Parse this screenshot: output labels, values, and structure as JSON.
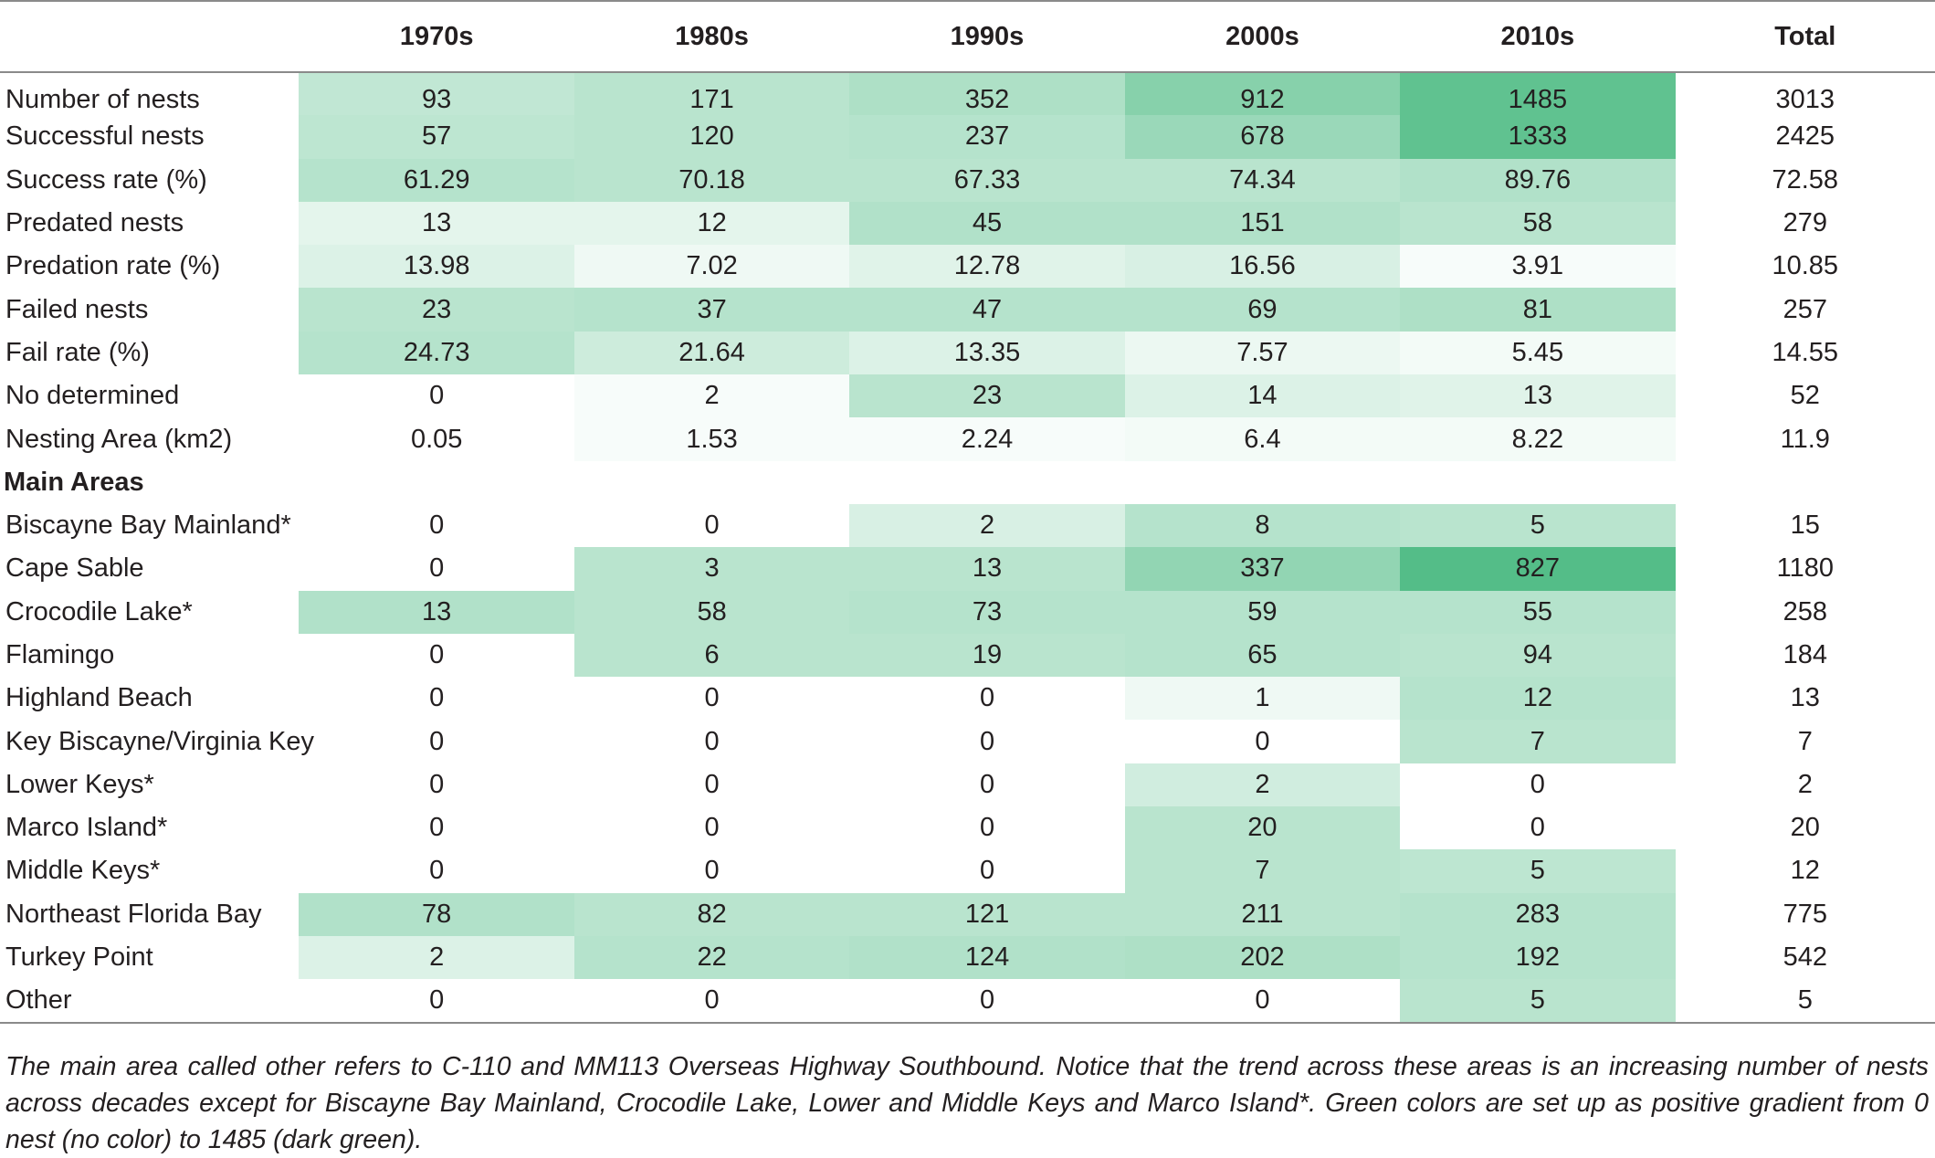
{
  "table": {
    "headers": [
      "",
      "1970s",
      "1980s",
      "1990s",
      "2000s",
      "2010s",
      "Total"
    ],
    "rows": [
      {
        "label": "Number of nests",
        "values": [
          "93",
          "171",
          "352",
          "912",
          "1485"
        ],
        "total": "3013",
        "shades": [
          0.32,
          0.36,
          0.42,
          0.62,
          0.82
        ]
      },
      {
        "label": "Successful nests",
        "values": [
          "57",
          "120",
          "237",
          "678",
          "1333"
        ],
        "total": "2425",
        "shades": [
          0.34,
          0.36,
          0.38,
          0.52,
          0.82
        ]
      },
      {
        "label": "Success rate (%)",
        "values": [
          "61.29",
          "70.18",
          "67.33",
          "74.34",
          "89.76"
        ],
        "total": "72.58",
        "shades": [
          0.38,
          0.36,
          0.36,
          0.36,
          0.4
        ]
      },
      {
        "label": "Predated nests",
        "values": [
          "13",
          "12",
          "45",
          "151",
          "58"
        ],
        "total": "279",
        "shades": [
          0.14,
          0.14,
          0.4,
          0.4,
          0.36
        ]
      },
      {
        "label": "Predation rate (%)",
        "values": [
          "13.98",
          "7.02",
          "12.78",
          "16.56",
          "3.91"
        ],
        "total": "10.85",
        "shades": [
          0.18,
          0.08,
          0.16,
          0.2,
          0.04
        ]
      },
      {
        "label": "Failed nests",
        "values": [
          "23",
          "37",
          "47",
          "69",
          "81"
        ],
        "total": "257",
        "shades": [
          0.36,
          0.38,
          0.38,
          0.38,
          0.42
        ]
      },
      {
        "label": "Fail rate (%)",
        "values": [
          "24.73",
          "21.64",
          "13.35",
          "7.57",
          "5.45"
        ],
        "total": "14.55",
        "shades": [
          0.38,
          0.26,
          0.18,
          0.1,
          0.06
        ]
      },
      {
        "label": "No determined",
        "values": [
          "0",
          "2",
          "23",
          "14",
          "13"
        ],
        "total": "52",
        "shades": [
          0,
          0.04,
          0.36,
          0.18,
          0.16
        ]
      },
      {
        "label": "Nesting Area (km2)",
        "values": [
          "0.05",
          "1.53",
          "2.24",
          "6.4",
          "8.22"
        ],
        "total": "11.9",
        "shades": [
          0,
          0.04,
          0.04,
          0.06,
          0.06
        ]
      },
      {
        "label": "Main Areas",
        "section": true
      },
      {
        "label": "Biscayne Bay Mainland*",
        "values": [
          "0",
          "0",
          "2",
          "8",
          "5"
        ],
        "total": "15",
        "shades": [
          0,
          0,
          0.2,
          0.38,
          0.36
        ]
      },
      {
        "label": "Cape Sable",
        "values": [
          "0",
          "3",
          "13",
          "337",
          "827"
        ],
        "total": "1180",
        "shades": [
          0,
          0.36,
          0.36,
          0.56,
          0.88
        ]
      },
      {
        "label": "Crocodile Lake*",
        "values": [
          "13",
          "58",
          "73",
          "59",
          "55"
        ],
        "total": "258",
        "shades": [
          0.4,
          0.36,
          0.38,
          0.38,
          0.38
        ]
      },
      {
        "label": "Flamingo",
        "values": [
          "0",
          "6",
          "19",
          "65",
          "94"
        ],
        "total": "184",
        "shades": [
          0,
          0.36,
          0.36,
          0.38,
          0.36
        ]
      },
      {
        "label": "Highland Beach",
        "values": [
          "0",
          "0",
          "0",
          "1",
          "12"
        ],
        "total": "13",
        "shades": [
          0,
          0,
          0,
          0.08,
          0.38
        ]
      },
      {
        "label": "Key Biscayne/Virginia Key",
        "values": [
          "0",
          "0",
          "0",
          "0",
          "7"
        ],
        "total": "7",
        "shades": [
          0,
          0,
          0,
          0,
          0.36
        ]
      },
      {
        "label": "Lower Keys*",
        "values": [
          "0",
          "0",
          "0",
          "2",
          "0"
        ],
        "total": "2",
        "shades": [
          0,
          0,
          0,
          0.24,
          0
        ]
      },
      {
        "label": "Marco Island*",
        "values": [
          "0",
          "0",
          "0",
          "20",
          "0"
        ],
        "total": "20",
        "shades": [
          0,
          0,
          0,
          0.36,
          0
        ]
      },
      {
        "label": "Middle Keys*",
        "values": [
          "0",
          "0",
          "0",
          "7",
          "5"
        ],
        "total": "12",
        "shades": [
          0,
          0,
          0,
          0.36,
          0.34
        ]
      },
      {
        "label": "Northeast Florida Bay",
        "values": [
          "78",
          "82",
          "121",
          "211",
          "283"
        ],
        "total": "775",
        "shades": [
          0.4,
          0.36,
          0.36,
          0.36,
          0.38
        ]
      },
      {
        "label": "Turkey Point",
        "values": [
          "2",
          "22",
          "124",
          "202",
          "192"
        ],
        "total": "542",
        "shades": [
          0.18,
          0.38,
          0.4,
          0.42,
          0.38
        ]
      },
      {
        "label": "Other",
        "values": [
          "0",
          "0",
          "0",
          "0",
          "5"
        ],
        "total": "5",
        "shades": [
          0,
          0,
          0,
          0,
          0.36
        ]
      }
    ]
  },
  "colors": {
    "gradient_low": "#ffffff",
    "gradient_high": "#3db478",
    "text": "#231f20",
    "rule": "#8a8a8a"
  },
  "footnote": "The main area called other refers to C-110 and MM113 Overseas Highway Southbound. Notice that the trend across these areas is an increasing number of nests across decades except for Biscayne Bay Mainland, Crocodile Lake, Lower and Middle Keys and Marco Island*. Green colors are set up as positive gradient from 0 nest (no color) to 1485 (dark green)."
}
